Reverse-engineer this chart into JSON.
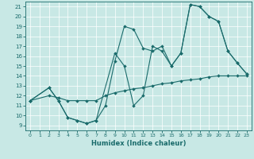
{
  "bg_color": "#c8e8e5",
  "line_color": "#1a6b6b",
  "xlabel": "Humidex (Indice chaleur)",
  "xlim": [
    -0.5,
    23.5
  ],
  "ylim": [
    8.5,
    21.5
  ],
  "xticks": [
    0,
    1,
    2,
    3,
    4,
    5,
    6,
    7,
    8,
    9,
    10,
    11,
    12,
    13,
    14,
    15,
    16,
    17,
    18,
    19,
    20,
    21,
    22,
    23
  ],
  "yticks": [
    9,
    10,
    11,
    12,
    13,
    14,
    15,
    16,
    17,
    18,
    19,
    20,
    21
  ],
  "series": [
    {
      "x": [
        0,
        2,
        3,
        4,
        5,
        6,
        7,
        9,
        10,
        11,
        12,
        13,
        14,
        15,
        16,
        17,
        18,
        19,
        20,
        21,
        22,
        23
      ],
      "y": [
        11.5,
        12.8,
        11.5,
        9.8,
        9.5,
        9.2,
        9.5,
        16.3,
        15.0,
        11.0,
        12.0,
        17.0,
        16.5,
        15.0,
        16.3,
        21.2,
        21.0,
        20.0,
        19.5,
        16.5,
        15.3,
        14.2
      ]
    },
    {
      "x": [
        0,
        2,
        3,
        4,
        5,
        6,
        7,
        8,
        9,
        10,
        11,
        12,
        13,
        14,
        15,
        16,
        17,
        18,
        19,
        20,
        21,
        22,
        23
      ],
      "y": [
        11.5,
        12.8,
        11.5,
        9.8,
        9.5,
        9.2,
        9.5,
        11.0,
        15.5,
        19.0,
        18.7,
        16.8,
        16.5,
        17.0,
        15.0,
        16.3,
        21.2,
        21.0,
        20.0,
        19.5,
        16.5,
        15.3,
        14.2
      ]
    },
    {
      "x": [
        0,
        2,
        3,
        4,
        5,
        6,
        7,
        8,
        9,
        10,
        11,
        12,
        13,
        14,
        15,
        16,
        17,
        18,
        19,
        20,
        21,
        22,
        23
      ],
      "y": [
        11.5,
        12.0,
        11.8,
        11.5,
        11.5,
        11.5,
        11.5,
        12.0,
        12.3,
        12.5,
        12.7,
        12.8,
        13.0,
        13.2,
        13.3,
        13.5,
        13.6,
        13.7,
        13.9,
        14.0,
        14.0,
        14.0,
        14.0
      ]
    }
  ]
}
